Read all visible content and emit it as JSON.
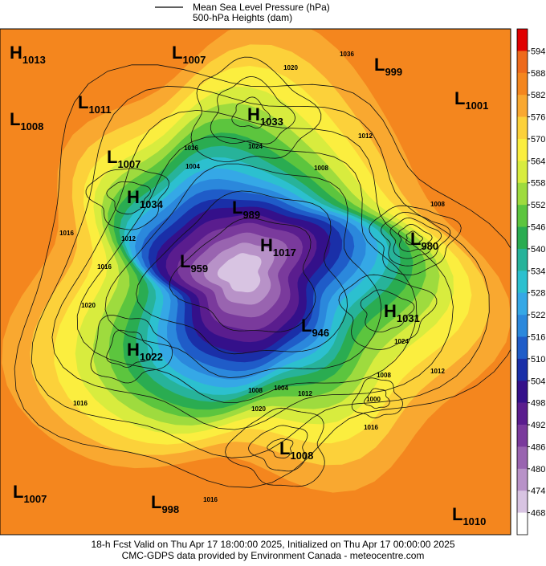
{
  "header": {
    "legend": [
      "Mean Sea Level Pressure (hPa)",
      "500-hPa Heights (dam)"
    ]
  },
  "pressure_centers": [
    {
      "symbol": "H",
      "value": "1013"
    },
    {
      "symbol": "L",
      "value": "1007"
    },
    {
      "symbol": "L",
      "value": "999"
    },
    {
      "symbol": "L",
      "value": "1011"
    },
    {
      "symbol": "L",
      "value": "1001"
    },
    {
      "symbol": "L",
      "value": "1008"
    },
    {
      "symbol": "H",
      "value": "1033"
    },
    {
      "symbol": "L",
      "value": "1007"
    },
    {
      "symbol": "H",
      "value": "1034"
    },
    {
      "symbol": "L",
      "value": "989"
    },
    {
      "symbol": "L",
      "value": "980"
    },
    {
      "symbol": "H",
      "value": "1017"
    },
    {
      "symbol": "L",
      "value": "959"
    },
    {
      "symbol": "H",
      "value": "1031"
    },
    {
      "symbol": "L",
      "value": "946"
    },
    {
      "symbol": "H",
      "value": "1022"
    },
    {
      "symbol": "L",
      "value": "1008"
    },
    {
      "symbol": "L",
      "value": "1007"
    },
    {
      "symbol": "L",
      "value": "998"
    },
    {
      "symbol": "L",
      "value": "1010"
    }
  ],
  "contour_labels": [
    "1020",
    "1036",
    "1016",
    "1024",
    "1012",
    "1004",
    "1008",
    "1008",
    "1016",
    "1012",
    "1016",
    "1020",
    "1024",
    "1012",
    "1008",
    "1008",
    "1004",
    "1012",
    "1000",
    "1020",
    "1016",
    "1016",
    "1016"
  ],
  "colorbar": {
    "ticks": [
      594,
      588,
      582,
      576,
      570,
      564,
      558,
      552,
      546,
      540,
      534,
      528,
      522,
      516,
      510,
      504,
      498,
      492,
      486,
      480,
      474,
      468
    ],
    "colors": [
      "#e00000",
      "#ee6a1c",
      "#f4861e",
      "#f9a830",
      "#fcd13a",
      "#fbee3f",
      "#d8ec3e",
      "#9edb3e",
      "#5cc53e",
      "#2aac51",
      "#27b39a",
      "#2cc0cf",
      "#35a8e6",
      "#2b88dc",
      "#1f5cc8",
      "#1a2fa8",
      "#34108a",
      "#5a1d8e",
      "#7a3a9c",
      "#9964b0",
      "#b892c8",
      "#d8c4e2",
      "#ffffff"
    ]
  },
  "footer": [
    "18-h Fcst Valid on Thu Apr 17 18:00:00 2025, Initialized on Thu Apr 17 00:00:00 2025",
    "CMC-GDPS data provided by Environment Canada - meteocentre.com"
  ]
}
